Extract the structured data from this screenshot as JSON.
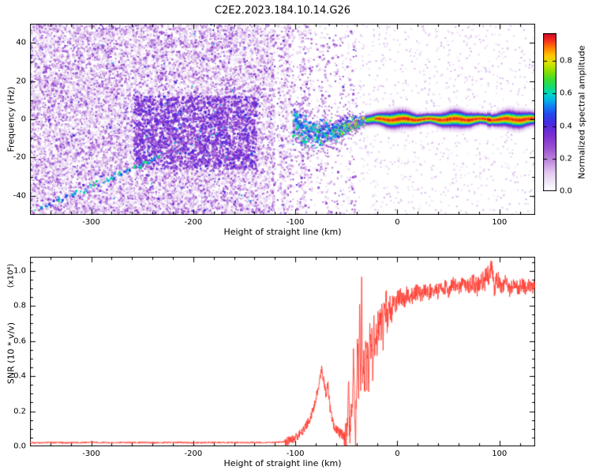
{
  "title": "C2E2.2023.184.10.14.G26",
  "chart_data": [
    {
      "type": "heatmap",
      "name": "spectrogram",
      "title": "C2E2.2023.184.10.14.G26",
      "xlabel": "Height of straight line (km)",
      "ylabel": "Frequency (Hz)",
      "xlim": [
        -360,
        135
      ],
      "ylim": [
        -50,
        50
      ],
      "xticks": [
        -300,
        -200,
        -100,
        0,
        100
      ],
      "yticks": [
        -40,
        -20,
        0,
        20,
        40
      ],
      "x_minor_step": 20,
      "y_minor_step": 10,
      "colorbar": {
        "label": "Normalized spectral amplitude",
        "ticks": [
          0.0,
          0.2,
          0.4,
          0.6,
          0.8
        ],
        "vmax": 0.97,
        "stops": [
          [
            0.0,
            "#ffffff"
          ],
          [
            0.05,
            "#f4ecf9"
          ],
          [
            0.12,
            "#e2c8f0"
          ],
          [
            0.2,
            "#bd86dd"
          ],
          [
            0.28,
            "#9a4fd0"
          ],
          [
            0.36,
            "#7a2fd0"
          ],
          [
            0.43,
            "#4a2ae0"
          ],
          [
            0.49,
            "#2547ee"
          ],
          [
            0.54,
            "#1181f2"
          ],
          [
            0.58,
            "#06b6e8"
          ],
          [
            0.62,
            "#00d8c0"
          ],
          [
            0.66,
            "#12dd74"
          ],
          [
            0.71,
            "#3fdc2e"
          ],
          [
            0.76,
            "#8ae000"
          ],
          [
            0.81,
            "#d6e400"
          ],
          [
            0.86,
            "#ffc800"
          ],
          [
            0.91,
            "#ff7d00"
          ],
          [
            0.955,
            "#f52f1e"
          ],
          [
            1.0,
            "#cf0728"
          ]
        ]
      },
      "features": {
        "background": "dense low-amplitude purple speckle noise below -100 km height, fading out toward -40 km with white vertical gaps",
        "carrier_signal": "narrow horizontal band at 0 Hz from -30 km to 135 km with red high-amplitude core and green/cyan/purple fringes",
        "scattered_carrier": "diffuse cyan/green/blue blobs around -5 Hz between -100 km and -30 km",
        "diagonal_trace": "faint cyan dotted trace descending toward lower left",
        "diagonal_trace_points": [
          [
            -235,
            -20
          ],
          [
            -260,
            -26
          ],
          [
            -285,
            -32
          ],
          [
            -310,
            -38
          ],
          [
            -330,
            -43
          ],
          [
            -352,
            -47
          ]
        ],
        "dark_cluster_region": {
          "x_range": [
            -258,
            -138
          ],
          "freq_range": [
            -26,
            12
          ]
        }
      }
    },
    {
      "type": "line",
      "name": "snr",
      "xlabel": "Height of straight line (km)",
      "ylabel": "SNR (10 * v/v)",
      "ylabel_scale": "(x10⁴)",
      "xlim": [
        -360,
        135
      ],
      "ylim": [
        0,
        1.08
      ],
      "xticks": [
        -300,
        -200,
        -100,
        0,
        100
      ],
      "yticks": [
        0.0,
        0.2,
        0.4,
        0.6,
        0.8,
        1.0
      ],
      "x_minor_step": 20,
      "y_minor_step": 0.05,
      "line_color": "#ff4136",
      "anchors": [
        [
          -360,
          0.02
        ],
        [
          -340,
          0.022
        ],
        [
          -320,
          0.02
        ],
        [
          -300,
          0.023
        ],
        [
          -280,
          0.02
        ],
        [
          -260,
          0.022
        ],
        [
          -240,
          0.021
        ],
        [
          -220,
          0.022
        ],
        [
          -200,
          0.02
        ],
        [
          -180,
          0.022
        ],
        [
          -160,
          0.021
        ],
        [
          -140,
          0.022
        ],
        [
          -125,
          0.022
        ],
        [
          -115,
          0.024
        ],
        [
          -108,
          0.028
        ],
        [
          -102,
          0.04
        ],
        [
          -97,
          0.06
        ],
        [
          -92,
          0.09
        ],
        [
          -88,
          0.13
        ],
        [
          -85,
          0.17
        ],
        [
          -82,
          0.22
        ],
        [
          -79,
          0.3
        ],
        [
          -76,
          0.38
        ],
        [
          -74,
          0.44
        ],
        [
          -72,
          0.36
        ],
        [
          -70,
          0.3
        ],
        [
          -68,
          0.34
        ],
        [
          -66,
          0.22
        ],
        [
          -64,
          0.15
        ],
        [
          -62,
          0.11
        ],
        [
          -60,
          0.09
        ],
        [
          -57,
          0.08
        ],
        [
          -54,
          0.07
        ],
        [
          -51,
          0.06
        ],
        [
          -49,
          0.1
        ],
        [
          -48,
          0.45
        ],
        [
          -47,
          0.12
        ],
        [
          -46,
          0.08
        ],
        [
          -44,
          0.3
        ],
        [
          -43,
          0.62
        ],
        [
          -42,
          0.15
        ],
        [
          -41,
          0.1
        ],
        [
          -40,
          0.25
        ],
        [
          -39,
          0.6
        ],
        [
          -38,
          0.3
        ],
        [
          -37,
          0.75
        ],
        [
          -36,
          0.25
        ],
        [
          -35,
          0.9
        ],
        [
          -34,
          0.35
        ],
        [
          -33,
          0.5
        ],
        [
          -32,
          0.28
        ],
        [
          -31,
          0.65
        ],
        [
          -30,
          0.4
        ],
        [
          -29,
          0.55
        ],
        [
          -28,
          0.35
        ],
        [
          -27,
          0.7
        ],
        [
          -26,
          0.45
        ],
        [
          -25,
          0.6
        ],
        [
          -24,
          0.4
        ],
        [
          -23,
          0.72
        ],
        [
          -22,
          0.5
        ],
        [
          -21,
          0.65
        ],
        [
          -20,
          0.55
        ],
        [
          -19,
          0.75
        ],
        [
          -18,
          0.6
        ],
        [
          -17,
          0.8
        ],
        [
          -16,
          0.65
        ],
        [
          -15,
          0.78
        ],
        [
          -14,
          0.6
        ],
        [
          -13,
          0.82
        ],
        [
          -12,
          0.68
        ],
        [
          -11,
          0.85
        ],
        [
          -10,
          0.72
        ],
        [
          -8,
          0.8
        ],
        [
          -6,
          0.75
        ],
        [
          -4,
          0.85
        ],
        [
          -2,
          0.78
        ],
        [
          0,
          0.84
        ],
        [
          3,
          0.86
        ],
        [
          6,
          0.83
        ],
        [
          10,
          0.87
        ],
        [
          14,
          0.85
        ],
        [
          18,
          0.88
        ],
        [
          22,
          0.86
        ],
        [
          26,
          0.89
        ],
        [
          30,
          0.87
        ],
        [
          35,
          0.9
        ],
        [
          40,
          0.88
        ],
        [
          45,
          0.91
        ],
        [
          50,
          0.89
        ],
        [
          55,
          0.92
        ],
        [
          60,
          0.9
        ],
        [
          65,
          0.93
        ],
        [
          70,
          0.91
        ],
        [
          75,
          0.94
        ],
        [
          78,
          0.9
        ],
        [
          82,
          0.97
        ],
        [
          85,
          0.92
        ],
        [
          88,
          1.0
        ],
        [
          90,
          0.94
        ],
        [
          92,
          1.02
        ],
        [
          95,
          0.9
        ],
        [
          98,
          0.96
        ],
        [
          102,
          0.9
        ],
        [
          106,
          0.94
        ],
        [
          110,
          0.89
        ],
        [
          114,
          0.93
        ],
        [
          118,
          0.9
        ],
        [
          122,
          0.92
        ],
        [
          126,
          0.9
        ],
        [
          130,
          0.92
        ],
        [
          135,
          0.9
        ]
      ],
      "noise_segments": [
        [
          -360,
          -110,
          0.005
        ],
        [
          -110,
          -75,
          0.025
        ],
        [
          -75,
          -52,
          0.03
        ],
        [
          -52,
          -28,
          0.1
        ],
        [
          -28,
          -5,
          0.08
        ],
        [
          -5,
          30,
          0.05
        ],
        [
          30,
          75,
          0.045
        ],
        [
          75,
          100,
          0.06
        ],
        [
          100,
          135,
          0.04
        ]
      ]
    }
  ]
}
